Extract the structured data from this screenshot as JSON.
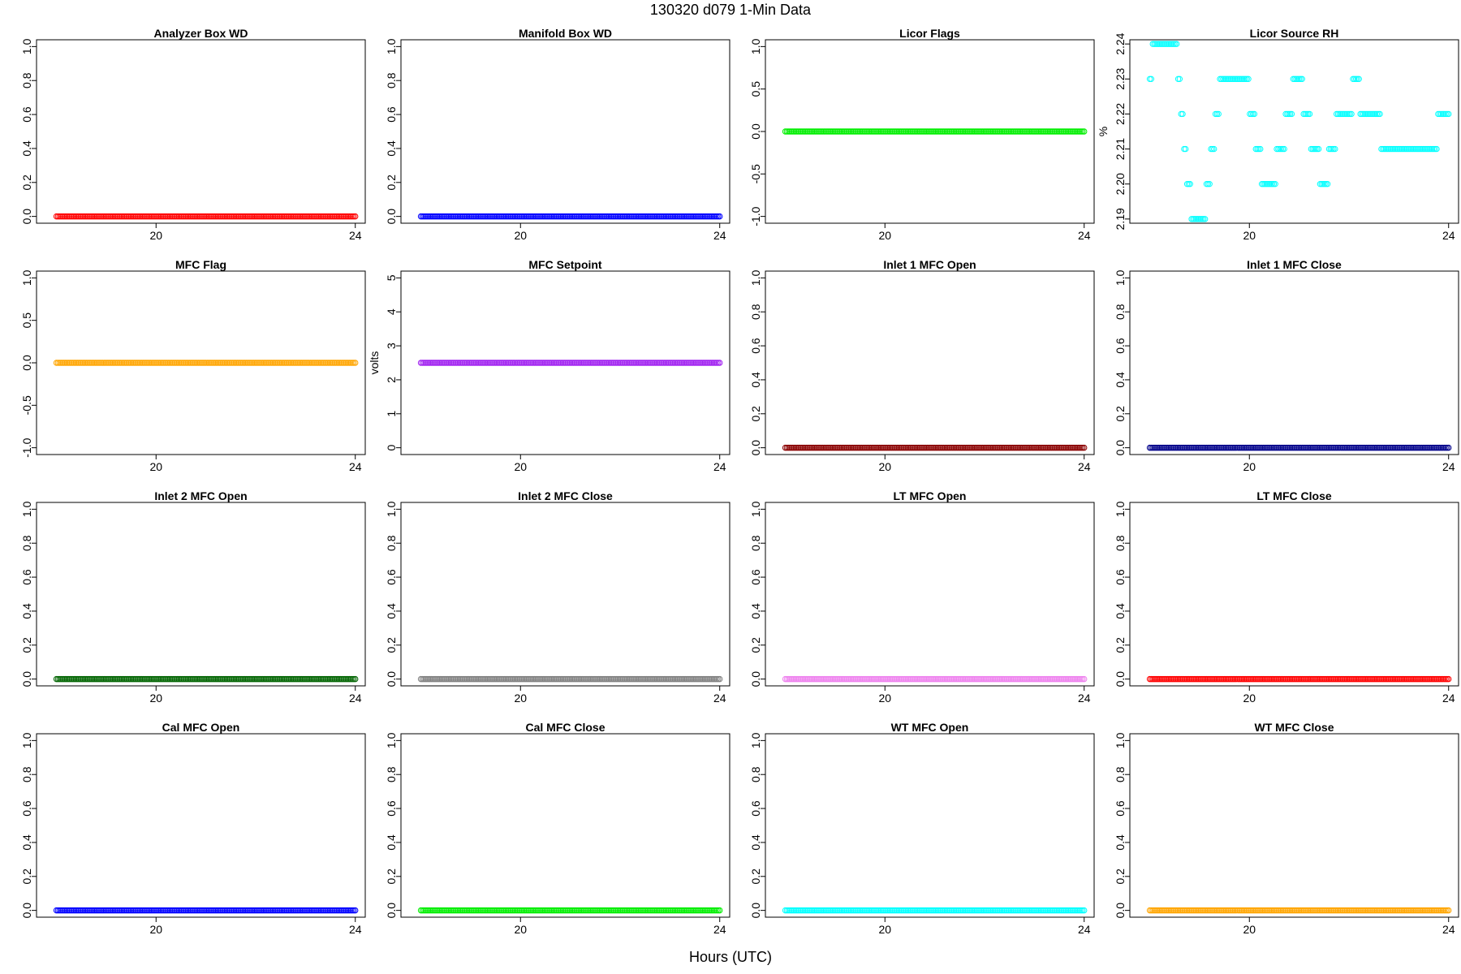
{
  "figure": {
    "title": "130320   d079   1-Min Data",
    "xlabel": "Hours (UTC)"
  },
  "chart_data": [
    {
      "type": "scatter",
      "title": "Analyzer Box WD",
      "ylabel": "",
      "color": "#ff0000",
      "xlim": [
        17.6,
        24.2
      ],
      "ylim": [
        -0.04,
        1.04
      ],
      "xticks": [
        20,
        24
      ],
      "yticks": [
        "0.0",
        "0.2",
        "0.4",
        "0.6",
        "0.8",
        "1.0"
      ],
      "x": [
        18,
        24
      ],
      "values": [
        0,
        0
      ],
      "series_kind": "constant"
    },
    {
      "type": "scatter",
      "title": "Manifold Box WD",
      "ylabel": "",
      "color": "#0000ff",
      "xlim": [
        17.6,
        24.2
      ],
      "ylim": [
        -0.04,
        1.04
      ],
      "xticks": [
        20,
        24
      ],
      "yticks": [
        "0.0",
        "0.2",
        "0.4",
        "0.6",
        "0.8",
        "1.0"
      ],
      "x": [
        18,
        24
      ],
      "values": [
        0,
        0
      ],
      "series_kind": "constant"
    },
    {
      "type": "scatter",
      "title": "Licor Flags",
      "ylabel": "",
      "color": "#00ee00",
      "xlim": [
        17.6,
        24.2
      ],
      "ylim": [
        -1.08,
        1.08
      ],
      "xticks": [
        20,
        24
      ],
      "yticks": [
        "-1.0",
        "-0.5",
        "0.0",
        "0.5",
        "1.0"
      ],
      "x": [
        18,
        24
      ],
      "values": [
        0,
        0
      ],
      "series_kind": "constant"
    },
    {
      "type": "scatter",
      "title": "Licor Source RH",
      "ylabel": "%",
      "color": "#00ffff",
      "xlim": [
        17.6,
        24.2
      ],
      "ylim": [
        2.1888,
        2.2412
      ],
      "xticks": [
        20,
        24
      ],
      "yticks": [
        "2.19",
        "2.20",
        "2.21",
        "2.22",
        "2.23",
        "2.24"
      ],
      "points": [
        [
          18.0,
          2.23
        ],
        [
          18.03,
          2.23
        ],
        [
          18.06,
          2.24
        ],
        [
          18.09,
          2.24
        ],
        [
          18.12,
          2.24
        ],
        [
          18.15,
          2.24
        ],
        [
          18.18,
          2.24
        ],
        [
          18.21,
          2.24
        ],
        [
          18.24,
          2.24
        ],
        [
          18.27,
          2.24
        ],
        [
          18.3,
          2.24
        ],
        [
          18.33,
          2.24
        ],
        [
          18.36,
          2.24
        ],
        [
          18.39,
          2.24
        ],
        [
          18.42,
          2.24
        ],
        [
          18.45,
          2.24
        ],
        [
          18.48,
          2.24
        ],
        [
          18.51,
          2.24
        ],
        [
          18.54,
          2.24
        ],
        [
          18.57,
          2.23
        ],
        [
          18.6,
          2.23
        ],
        [
          18.63,
          2.22
        ],
        [
          18.66,
          2.22
        ],
        [
          18.69,
          2.21
        ],
        [
          18.72,
          2.21
        ],
        [
          18.75,
          2.2
        ],
        [
          18.78,
          2.2
        ],
        [
          18.81,
          2.2
        ],
        [
          18.84,
          2.19
        ],
        [
          18.87,
          2.19
        ],
        [
          18.9,
          2.19
        ],
        [
          18.93,
          2.19
        ],
        [
          18.96,
          2.19
        ],
        [
          18.99,
          2.19
        ],
        [
          19.02,
          2.19
        ],
        [
          19.05,
          2.19
        ],
        [
          19.08,
          2.19
        ],
        [
          19.11,
          2.19
        ],
        [
          19.14,
          2.2
        ],
        [
          19.17,
          2.2
        ],
        [
          19.2,
          2.2
        ],
        [
          19.23,
          2.21
        ],
        [
          19.26,
          2.21
        ],
        [
          19.29,
          2.21
        ],
        [
          19.32,
          2.22
        ],
        [
          19.35,
          2.22
        ],
        [
          19.38,
          2.22
        ],
        [
          19.41,
          2.23
        ],
        [
          19.44,
          2.23
        ],
        [
          19.47,
          2.23
        ],
        [
          19.5,
          2.23
        ],
        [
          19.53,
          2.23
        ],
        [
          19.56,
          2.23
        ],
        [
          19.59,
          2.23
        ],
        [
          19.62,
          2.23
        ],
        [
          19.65,
          2.23
        ],
        [
          19.68,
          2.23
        ],
        [
          19.71,
          2.23
        ],
        [
          19.74,
          2.23
        ],
        [
          19.77,
          2.23
        ],
        [
          19.8,
          2.23
        ],
        [
          19.83,
          2.23
        ],
        [
          19.86,
          2.23
        ],
        [
          19.89,
          2.23
        ],
        [
          19.92,
          2.23
        ],
        [
          19.95,
          2.23
        ],
        [
          19.98,
          2.23
        ],
        [
          20.01,
          2.22
        ],
        [
          20.04,
          2.22
        ],
        [
          20.07,
          2.22
        ],
        [
          20.1,
          2.22
        ],
        [
          20.13,
          2.21
        ],
        [
          20.16,
          2.21
        ],
        [
          20.19,
          2.21
        ],
        [
          20.22,
          2.21
        ],
        [
          20.25,
          2.2
        ],
        [
          20.28,
          2.2
        ],
        [
          20.31,
          2.2
        ],
        [
          20.34,
          2.2
        ],
        [
          20.37,
          2.2
        ],
        [
          20.4,
          2.2
        ],
        [
          20.43,
          2.2
        ],
        [
          20.46,
          2.2
        ],
        [
          20.49,
          2.2
        ],
        [
          20.52,
          2.2
        ],
        [
          20.55,
          2.21
        ],
        [
          20.58,
          2.21
        ],
        [
          20.61,
          2.21
        ],
        [
          20.64,
          2.21
        ],
        [
          20.67,
          2.21
        ],
        [
          20.7,
          2.21
        ],
        [
          20.73,
          2.22
        ],
        [
          20.76,
          2.22
        ],
        [
          20.79,
          2.22
        ],
        [
          20.82,
          2.22
        ],
        [
          20.85,
          2.22
        ],
        [
          20.88,
          2.23
        ],
        [
          20.91,
          2.23
        ],
        [
          20.94,
          2.23
        ],
        [
          20.97,
          2.23
        ],
        [
          21.0,
          2.23
        ],
        [
          21.03,
          2.23
        ],
        [
          21.06,
          2.23
        ],
        [
          21.09,
          2.22
        ],
        [
          21.12,
          2.22
        ],
        [
          21.15,
          2.22
        ],
        [
          21.18,
          2.22
        ],
        [
          21.21,
          2.22
        ],
        [
          21.24,
          2.21
        ],
        [
          21.27,
          2.21
        ],
        [
          21.3,
          2.21
        ],
        [
          21.33,
          2.21
        ],
        [
          21.36,
          2.21
        ],
        [
          21.39,
          2.21
        ],
        [
          21.42,
          2.2
        ],
        [
          21.45,
          2.2
        ],
        [
          21.48,
          2.2
        ],
        [
          21.51,
          2.2
        ],
        [
          21.54,
          2.2
        ],
        [
          21.57,
          2.2
        ],
        [
          21.6,
          2.21
        ],
        [
          21.63,
          2.21
        ],
        [
          21.66,
          2.21
        ],
        [
          21.69,
          2.21
        ],
        [
          21.72,
          2.21
        ],
        [
          21.75,
          2.22
        ],
        [
          21.78,
          2.22
        ],
        [
          21.81,
          2.22
        ],
        [
          21.84,
          2.22
        ],
        [
          21.87,
          2.22
        ],
        [
          21.9,
          2.22
        ],
        [
          21.93,
          2.22
        ],
        [
          21.96,
          2.22
        ],
        [
          21.99,
          2.22
        ],
        [
          22.02,
          2.22
        ],
        [
          22.05,
          2.22
        ],
        [
          22.08,
          2.23
        ],
        [
          22.11,
          2.23
        ],
        [
          22.14,
          2.23
        ],
        [
          22.17,
          2.23
        ],
        [
          22.2,
          2.23
        ],
        [
          22.23,
          2.22
        ],
        [
          22.26,
          2.22
        ],
        [
          22.29,
          2.22
        ],
        [
          22.32,
          2.22
        ],
        [
          22.35,
          2.22
        ],
        [
          22.38,
          2.22
        ],
        [
          22.41,
          2.22
        ],
        [
          22.44,
          2.22
        ],
        [
          22.47,
          2.22
        ],
        [
          22.5,
          2.22
        ],
        [
          22.53,
          2.22
        ],
        [
          22.56,
          2.22
        ],
        [
          22.59,
          2.22
        ],
        [
          22.62,
          2.22
        ],
        [
          22.65,
          2.21
        ],
        [
          22.68,
          2.21
        ],
        [
          22.71,
          2.21
        ],
        [
          22.74,
          2.21
        ],
        [
          22.77,
          2.21
        ],
        [
          22.8,
          2.21
        ],
        [
          22.83,
          2.21
        ],
        [
          22.86,
          2.21
        ],
        [
          22.89,
          2.21
        ],
        [
          22.92,
          2.21
        ],
        [
          22.95,
          2.21
        ],
        [
          22.98,
          2.21
        ],
        [
          23.01,
          2.21
        ],
        [
          23.04,
          2.21
        ],
        [
          23.07,
          2.21
        ],
        [
          23.1,
          2.21
        ],
        [
          23.13,
          2.21
        ],
        [
          23.16,
          2.21
        ],
        [
          23.19,
          2.21
        ],
        [
          23.22,
          2.21
        ],
        [
          23.25,
          2.21
        ],
        [
          23.28,
          2.21
        ],
        [
          23.31,
          2.21
        ],
        [
          23.34,
          2.21
        ],
        [
          23.37,
          2.21
        ],
        [
          23.4,
          2.21
        ],
        [
          23.43,
          2.21
        ],
        [
          23.46,
          2.21
        ],
        [
          23.49,
          2.21
        ],
        [
          23.52,
          2.21
        ],
        [
          23.55,
          2.21
        ],
        [
          23.58,
          2.21
        ],
        [
          23.61,
          2.21
        ],
        [
          23.64,
          2.21
        ],
        [
          23.67,
          2.21
        ],
        [
          23.7,
          2.21
        ],
        [
          23.73,
          2.21
        ],
        [
          23.76,
          2.21
        ],
        [
          23.79,
          2.22
        ],
        [
          23.82,
          2.22
        ],
        [
          23.85,
          2.22
        ],
        [
          23.88,
          2.22
        ],
        [
          23.91,
          2.22
        ],
        [
          23.94,
          2.22
        ],
        [
          23.97,
          2.22
        ],
        [
          24.0,
          2.22
        ]
      ]
    },
    {
      "type": "scatter",
      "title": "MFC Flag",
      "ylabel": "",
      "color": "#ffa500",
      "xlim": [
        17.6,
        24.2
      ],
      "ylim": [
        -1.08,
        1.08
      ],
      "xticks": [
        20,
        24
      ],
      "yticks": [
        "-1.0",
        "-0.5",
        "0.0",
        "0.5",
        "1.0"
      ],
      "x": [
        18,
        24
      ],
      "values": [
        0,
        0
      ],
      "series_kind": "constant"
    },
    {
      "type": "scatter",
      "title": "MFC Setpoint",
      "ylabel": "volts",
      "color": "#a020f0",
      "xlim": [
        17.6,
        24.2
      ],
      "ylim": [
        -0.2,
        5.2
      ],
      "xticks": [
        20,
        24
      ],
      "yticks": [
        "0",
        "1",
        "2",
        "3",
        "4",
        "5"
      ],
      "x": [
        18,
        24
      ],
      "values": [
        2.5,
        2.5
      ],
      "series_kind": "constant"
    },
    {
      "type": "scatter",
      "title": "Inlet 1 MFC Open",
      "ylabel": "",
      "color": "#8b0000",
      "xlim": [
        17.6,
        24.2
      ],
      "ylim": [
        -0.04,
        1.04
      ],
      "xticks": [
        20,
        24
      ],
      "yticks": [
        "0.0",
        "0.2",
        "0.4",
        "0.6",
        "0.8",
        "1.0"
      ],
      "x": [
        18,
        24
      ],
      "values": [
        0,
        0
      ],
      "series_kind": "constant"
    },
    {
      "type": "scatter",
      "title": "Inlet 1 MFC Close",
      "ylabel": "",
      "color": "#00008b",
      "xlim": [
        17.6,
        24.2
      ],
      "ylim": [
        -0.04,
        1.04
      ],
      "xticks": [
        20,
        24
      ],
      "yticks": [
        "0.0",
        "0.2",
        "0.4",
        "0.6",
        "0.8",
        "1.0"
      ],
      "x": [
        18,
        24
      ],
      "values": [
        0,
        0
      ],
      "series_kind": "constant"
    },
    {
      "type": "scatter",
      "title": "Inlet 2 MFC Open",
      "ylabel": "",
      "color": "#006400",
      "xlim": [
        17.6,
        24.2
      ],
      "ylim": [
        -0.04,
        1.04
      ],
      "xticks": [
        20,
        24
      ],
      "yticks": [
        "0.0",
        "0.2",
        "0.4",
        "0.6",
        "0.8",
        "1.0"
      ],
      "x": [
        18,
        24
      ],
      "values": [
        0,
        0
      ],
      "series_kind": "constant"
    },
    {
      "type": "scatter",
      "title": "Inlet 2 MFC Close",
      "ylabel": "",
      "color": "#808080",
      "xlim": [
        17.6,
        24.2
      ],
      "ylim": [
        -0.04,
        1.04
      ],
      "xticks": [
        20,
        24
      ],
      "yticks": [
        "0.0",
        "0.2",
        "0.4",
        "0.6",
        "0.8",
        "1.0"
      ],
      "x": [
        18,
        24
      ],
      "values": [
        0,
        0
      ],
      "series_kind": "constant"
    },
    {
      "type": "scatter",
      "title": "LT MFC Open",
      "ylabel": "",
      "color": "#ee82ee",
      "xlim": [
        17.6,
        24.2
      ],
      "ylim": [
        -0.04,
        1.04
      ],
      "xticks": [
        20,
        24
      ],
      "yticks": [
        "0.0",
        "0.2",
        "0.4",
        "0.6",
        "0.8",
        "1.0"
      ],
      "x": [
        18,
        24
      ],
      "values": [
        0,
        0
      ],
      "series_kind": "constant"
    },
    {
      "type": "scatter",
      "title": "LT MFC Close",
      "ylabel": "",
      "color": "#ff0000",
      "xlim": [
        17.6,
        24.2
      ],
      "ylim": [
        -0.04,
        1.04
      ],
      "xticks": [
        20,
        24
      ],
      "yticks": [
        "0.0",
        "0.2",
        "0.4",
        "0.6",
        "0.8",
        "1.0"
      ],
      "x": [
        18,
        24
      ],
      "values": [
        0,
        0
      ],
      "series_kind": "constant"
    },
    {
      "type": "scatter",
      "title": "Cal MFC Open",
      "ylabel": "",
      "color": "#0000ff",
      "xlim": [
        17.6,
        24.2
      ],
      "ylim": [
        -0.04,
        1.04
      ],
      "xticks": [
        20,
        24
      ],
      "yticks": [
        "0.0",
        "0.2",
        "0.4",
        "0.6",
        "0.8",
        "1.0"
      ],
      "x": [
        18,
        24
      ],
      "values": [
        0,
        0
      ],
      "series_kind": "constant"
    },
    {
      "type": "scatter",
      "title": "Cal MFC Close",
      "ylabel": "",
      "color": "#00ee00",
      "xlim": [
        17.6,
        24.2
      ],
      "ylim": [
        -0.04,
        1.04
      ],
      "xticks": [
        20,
        24
      ],
      "yticks": [
        "0.0",
        "0.2",
        "0.4",
        "0.6",
        "0.8",
        "1.0"
      ],
      "x": [
        18,
        24
      ],
      "values": [
        0,
        0
      ],
      "series_kind": "constant"
    },
    {
      "type": "scatter",
      "title": "WT MFC Open",
      "ylabel": "",
      "color": "#00ffff",
      "xlim": [
        17.6,
        24.2
      ],
      "ylim": [
        -0.04,
        1.04
      ],
      "xticks": [
        20,
        24
      ],
      "yticks": [
        "0.0",
        "0.2",
        "0.4",
        "0.6",
        "0.8",
        "1.0"
      ],
      "x": [
        18,
        24
      ],
      "values": [
        0,
        0
      ],
      "series_kind": "constant"
    },
    {
      "type": "scatter",
      "title": "WT MFC Close",
      "ylabel": "",
      "color": "#ffa500",
      "xlim": [
        17.6,
        24.2
      ],
      "ylim": [
        -0.04,
        1.04
      ],
      "xticks": [
        20,
        24
      ],
      "yticks": [
        "0.0",
        "0.2",
        "0.4",
        "0.6",
        "0.8",
        "1.0"
      ],
      "x": [
        18,
        24
      ],
      "values": [
        0,
        0
      ],
      "series_kind": "constant"
    }
  ]
}
